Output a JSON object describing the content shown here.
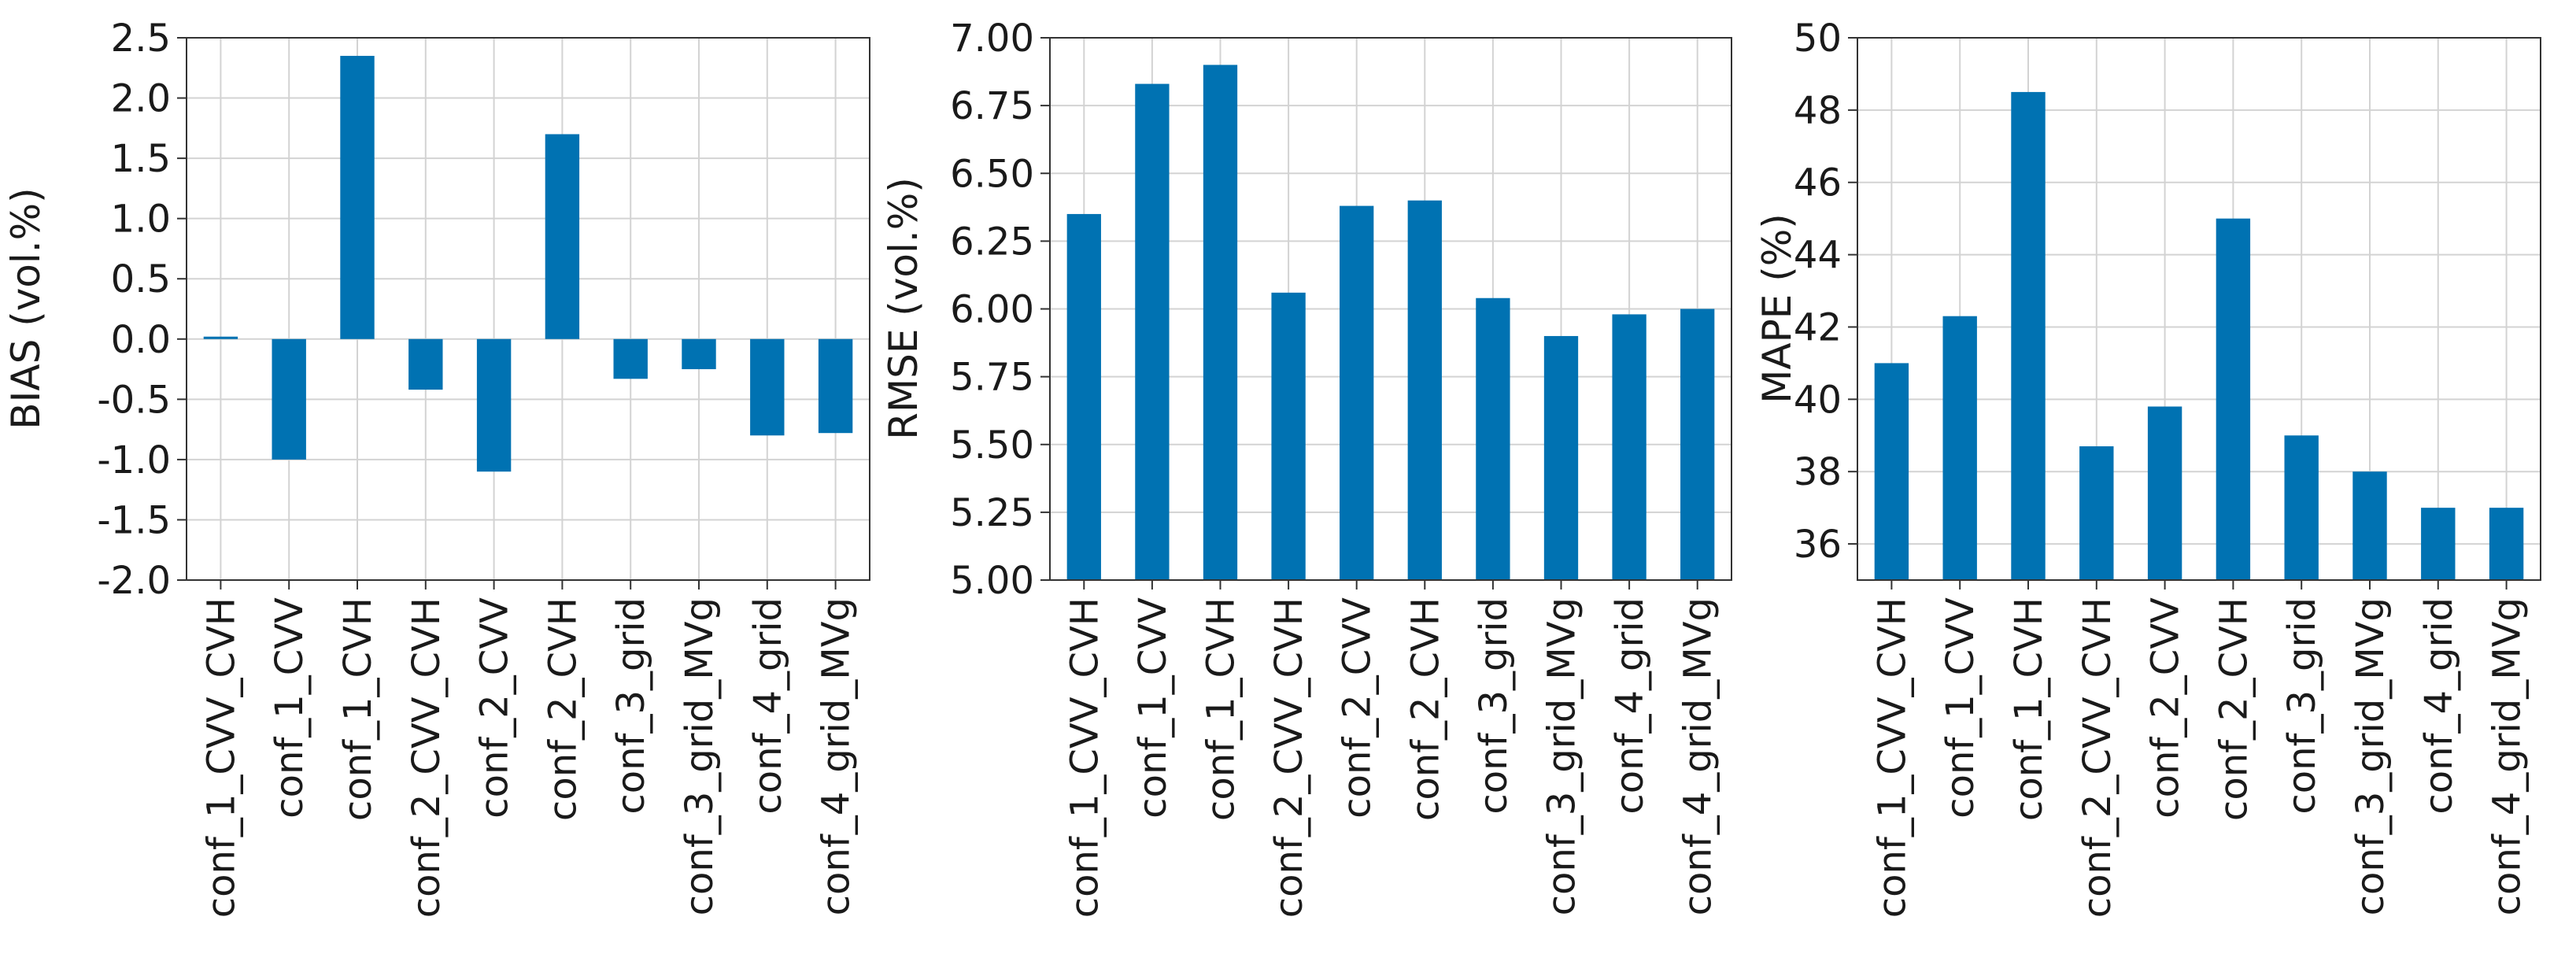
{
  "chart_data": [
    {
      "type": "bar",
      "ylabel": "BIAS (vol.%)",
      "ylim": [
        -2.0,
        2.5
      ],
      "yticks": [
        "-2.0",
        "-1.5",
        "-1.0",
        "-0.5",
        "0.0",
        "0.5",
        "1.0",
        "1.5",
        "2.0",
        "2.5"
      ],
      "categories": [
        "conf_1_CVV_CVH",
        "conf_1_CVV",
        "conf_1_CVH",
        "conf_2_CVV_CVH",
        "conf_2_CVV",
        "conf_2_CVH",
        "conf_3_grid",
        "conf_3_grid_MVg",
        "conf_4_grid",
        "conf_4_grid_MVg"
      ],
      "values": [
        0.02,
        -1.0,
        2.35,
        -0.42,
        -1.1,
        1.7,
        -0.33,
        -0.25,
        -0.8,
        -0.78
      ],
      "color": "#0072b2",
      "grid": true
    },
    {
      "type": "bar",
      "ylabel": "RMSE (vol.%)",
      "ylim": [
        5.0,
        7.0
      ],
      "yticks": [
        "5.00",
        "5.25",
        "5.50",
        "5.75",
        "6.00",
        "6.25",
        "6.50",
        "6.75",
        "7.00"
      ],
      "categories": [
        "conf_1_CVV_CVH",
        "conf_1_CVV",
        "conf_1_CVH",
        "conf_2_CVV_CVH",
        "conf_2_CVV",
        "conf_2_CVH",
        "conf_3_grid",
        "conf_3_grid_MVg",
        "conf_4_grid",
        "conf_4_grid_MVg"
      ],
      "values": [
        6.35,
        6.83,
        6.9,
        6.06,
        6.38,
        6.4,
        6.04,
        5.9,
        5.98,
        6.0
      ],
      "color": "#0072b2",
      "grid": true
    },
    {
      "type": "bar",
      "ylabel": "MAPE (%)",
      "ylim": [
        35,
        50
      ],
      "yticks": [
        "36",
        "38",
        "40",
        "42",
        "44",
        "46",
        "48",
        "50"
      ],
      "categories": [
        "conf_1_CVV_CVH",
        "conf_1_CVV",
        "conf_1_CVH",
        "conf_2_CVV_CVH",
        "conf_2_CVV",
        "conf_2_CVH",
        "conf_3_grid",
        "conf_3_grid_MVg",
        "conf_4_grid",
        "conf_4_grid_MVg"
      ],
      "values": [
        41.0,
        42.3,
        48.5,
        38.7,
        39.8,
        45.0,
        39.0,
        38.0,
        37.0,
        37.0
      ],
      "color": "#0072b2",
      "grid": true
    }
  ]
}
